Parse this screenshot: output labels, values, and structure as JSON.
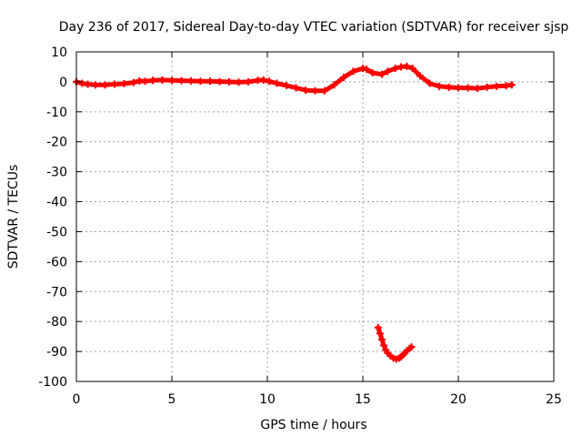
{
  "chart_data": {
    "type": "scatter",
    "title": "Day 236 of 2017, Sidereal Day-to-day VTEC variation (SDTVAR) for receiver sjsp",
    "xlabel": "GPS time / hours",
    "ylabel": "SDTVAR / TECUs",
    "xlim": [
      0,
      25
    ],
    "ylim": [
      -100,
      10
    ],
    "xticks": [
      "0",
      "5",
      "10",
      "15",
      "20",
      "25"
    ],
    "yticks": [
      "10",
      "0",
      "-10",
      "-20",
      "-30",
      "-40",
      "-50",
      "-60",
      "-70",
      "-80",
      "-90",
      "-100"
    ],
    "grid": true,
    "colors": {
      "series": "#ff0000",
      "grid": "#a0a0a0",
      "axis": "#000000"
    },
    "series": [
      {
        "marker": "plus",
        "x": [
          0.0,
          0.3,
          0.6,
          1.0,
          1.5,
          2.0,
          2.5,
          3.0,
          3.3,
          3.6,
          4.0,
          4.5,
          5.0,
          5.5,
          6.0,
          6.5,
          7.0,
          7.5,
          8.0,
          8.5,
          9.0,
          9.5,
          9.8,
          10.1,
          10.5,
          11.0,
          11.5,
          12.0,
          12.5,
          13.0,
          13.5,
          14.0,
          14.5,
          15.0,
          15.2,
          15.5,
          16.0,
          16.3,
          16.7,
          17.0,
          17.3,
          17.6,
          18.0,
          18.5,
          19.0,
          19.5,
          20.0,
          20.5,
          21.0,
          21.5,
          22.0,
          22.5,
          22.8
        ],
        "y": [
          0.0,
          -0.5,
          -0.8,
          -1.0,
          -1.0,
          -0.8,
          -0.6,
          -0.2,
          0.3,
          0.2,
          0.5,
          0.6,
          0.5,
          0.4,
          0.3,
          0.2,
          0.2,
          0.1,
          0.0,
          -0.1,
          0.0,
          0.5,
          0.6,
          0.2,
          -0.5,
          -1.2,
          -2.0,
          -2.8,
          -3.0,
          -3.0,
          -1.0,
          1.5,
          3.5,
          4.5,
          4.2,
          3.0,
          2.5,
          3.5,
          4.5,
          5.0,
          5.2,
          4.5,
          2.0,
          -0.5,
          -1.5,
          -1.8,
          -2.0,
          -2.0,
          -2.2,
          -1.8,
          -1.5,
          -1.3,
          -1.0
        ]
      },
      {
        "marker": "plus",
        "x": [
          15.8,
          15.9,
          16.0,
          16.1,
          16.2,
          16.3,
          16.45,
          16.6,
          16.75,
          16.9,
          17.0,
          17.1,
          17.2,
          17.3,
          17.45,
          17.55
        ],
        "y": [
          -82.0,
          -84.0,
          -86.0,
          -88.0,
          -89.5,
          -90.5,
          -91.5,
          -92.2,
          -92.5,
          -92.2,
          -91.8,
          -91.2,
          -90.5,
          -89.8,
          -89.0,
          -88.5
        ]
      }
    ]
  }
}
